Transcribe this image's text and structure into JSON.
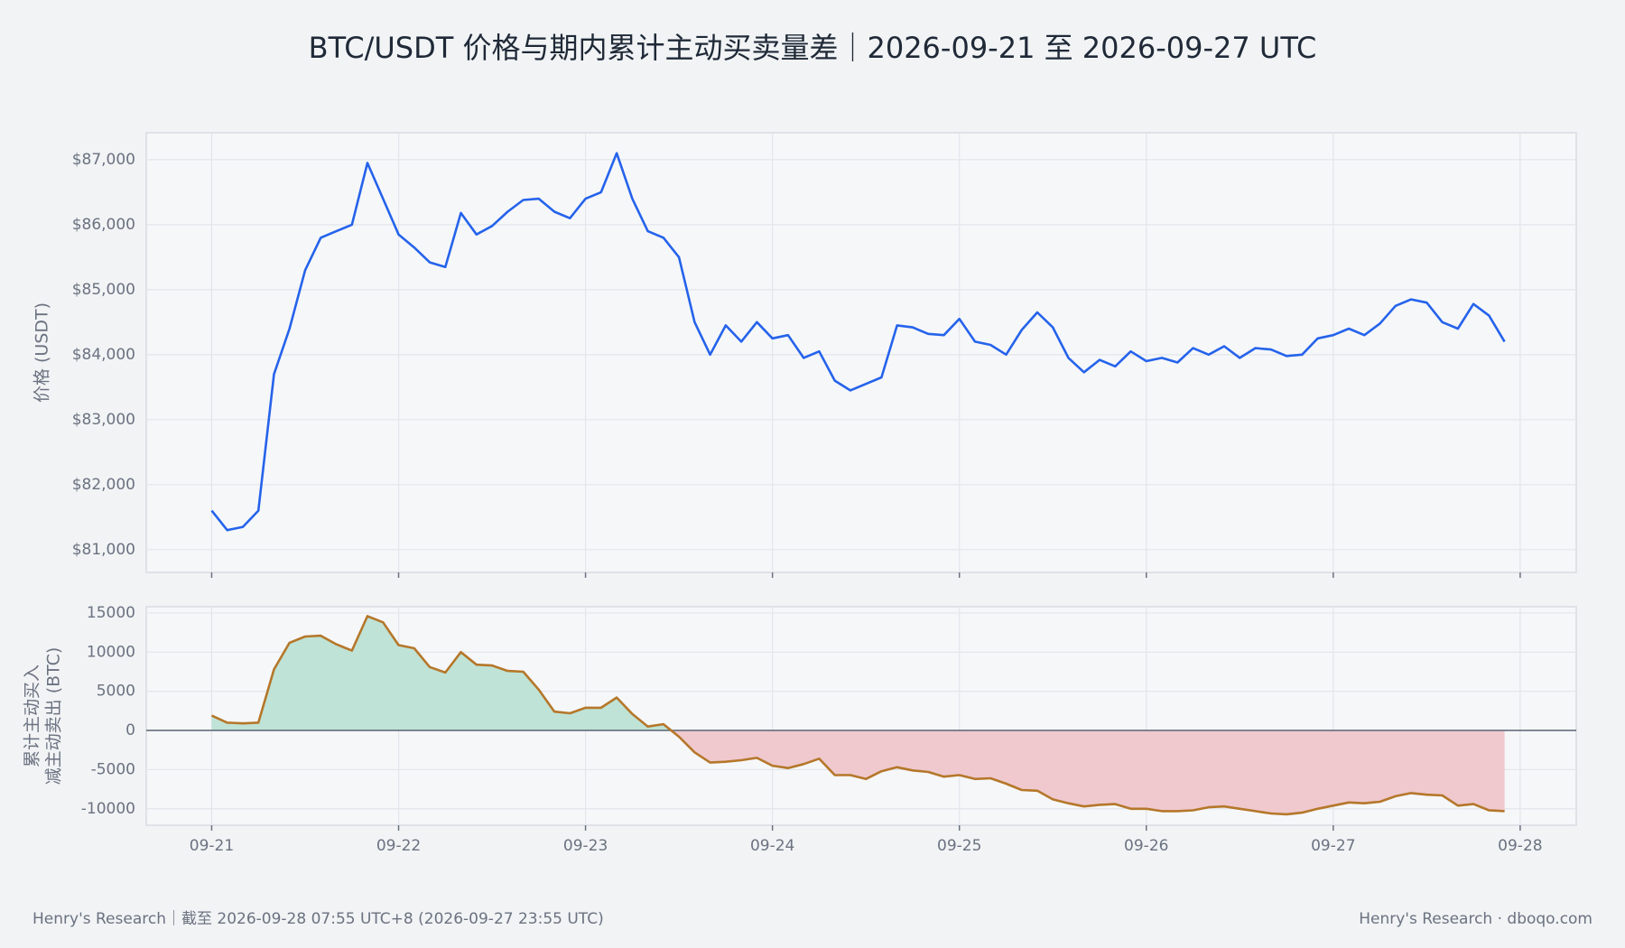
{
  "title": "BTC/USDT 价格与期内累计主动买卖量差｜2026-09-21 至 2026-09-27 UTC",
  "footer": {
    "left": "Henry's Research｜截至 2026-09-28 07:55 UTC+8 (2026-09-27 23:55 UTC)",
    "right": "Henry's Research · dboqo.com"
  },
  "chart_data": [
    {
      "type": "line",
      "ylabel": "价格 (USDT)",
      "x": [
        0,
        2,
        4,
        6,
        8,
        10,
        12,
        14,
        16,
        18,
        20,
        22,
        24,
        26,
        28,
        30,
        32,
        34,
        36,
        38,
        40,
        42,
        44,
        46,
        48,
        50,
        52,
        54,
        56,
        58,
        60,
        62,
        64,
        66,
        68,
        70,
        72,
        74,
        76,
        78,
        80,
        82,
        84,
        86,
        88,
        90,
        92,
        94,
        96,
        98,
        100,
        102,
        104,
        106,
        108,
        110,
        112,
        114,
        116,
        118,
        120,
        122,
        124,
        126,
        128,
        130,
        132,
        134,
        136,
        138,
        140,
        142,
        144,
        146,
        148,
        150,
        152,
        154,
        156,
        158,
        160,
        162,
        164,
        166
      ],
      "series": [
        {
          "name": "价格",
          "color": "#2563eb",
          "values": [
            81600,
            81300,
            81350,
            81600,
            83700,
            84400,
            85300,
            85800,
            85900,
            86000,
            86950,
            86400,
            85850,
            85650,
            85420,
            85350,
            86180,
            85850,
            85980,
            86200,
            86380,
            86400,
            86200,
            86100,
            86400,
            86500,
            87100,
            86400,
            85900,
            85800,
            85500,
            84500,
            84000,
            84450,
            84200,
            84500,
            84250,
            84300,
            83950,
            84050,
            83600,
            83450,
            83550,
            83650,
            84450,
            84420,
            84320,
            84300,
            84550,
            84200,
            84150,
            84000,
            84380,
            84650,
            84420,
            83950,
            83730,
            83920,
            83820,
            84050,
            83900,
            83950,
            83880,
            84100,
            84000,
            84130,
            83950,
            84100,
            84080,
            83980,
            84000,
            84250,
            84300,
            84400,
            84300,
            84480,
            84750,
            84850,
            84800,
            84500,
            84400,
            84780,
            84600,
            84200
          ]
        }
      ],
      "xlim": [
        -8.4,
        175.2
      ],
      "ylim": [
        80650,
        87415
      ],
      "yticks": [
        {
          "value": 81000,
          "label": "$81,000"
        },
        {
          "value": 82000,
          "label": "$82,000"
        },
        {
          "value": 83000,
          "label": "$83,000"
        },
        {
          "value": 84000,
          "label": "$84,000"
        },
        {
          "value": 85000,
          "label": "$85,000"
        },
        {
          "value": 86000,
          "label": "$86,000"
        },
        {
          "value": 87000,
          "label": "$87,000"
        }
      ],
      "grid": true
    },
    {
      "type": "area",
      "ylabel": [
        "累计主动买入",
        "减主动卖出 (BTC)"
      ],
      "x": [
        0,
        2,
        4,
        6,
        8,
        10,
        12,
        14,
        16,
        18,
        20,
        22,
        24,
        26,
        28,
        30,
        32,
        34,
        36,
        38,
        40,
        42,
        44,
        46,
        48,
        50,
        52,
        54,
        56,
        58,
        60,
        62,
        64,
        66,
        68,
        70,
        72,
        74,
        76,
        78,
        80,
        82,
        84,
        86,
        88,
        90,
        92,
        94,
        96,
        98,
        100,
        102,
        104,
        106,
        108,
        110,
        112,
        114,
        116,
        118,
        120,
        122,
        124,
        126,
        128,
        130,
        132,
        134,
        136,
        138,
        140,
        142,
        144,
        146,
        148,
        150,
        152,
        154,
        156,
        158,
        160,
        162,
        164,
        166
      ],
      "series": [
        {
          "name": "累计主动买卖量差",
          "color": "#b5772a",
          "values": [
            1900,
            1000,
            900,
            1000,
            7800,
            11200,
            12000,
            12100,
            11000,
            10200,
            14600,
            13800,
            10900,
            10500,
            8100,
            7400,
            10000,
            8400,
            8300,
            7600,
            7500,
            5200,
            2400,
            2200,
            2900,
            2900,
            4200,
            2100,
            500,
            800,
            -800,
            -2800,
            -4100,
            -4000,
            -3800,
            -3500,
            -4500,
            -4800,
            -4300,
            -3600,
            -5700,
            -5700,
            -6200,
            -5200,
            -4700,
            -5100,
            -5300,
            -5900,
            -5700,
            -6200,
            -6100,
            -6800,
            -7600,
            -7700,
            -8800,
            -9300,
            -9700,
            -9500,
            -9400,
            -10000,
            -10000,
            -10300,
            -10300,
            -10200,
            -9800,
            -9700,
            -10000,
            -10300,
            -10600,
            -10700,
            -10500,
            -10000,
            -9600,
            -9200,
            -9300,
            -9100,
            -8400,
            -8000,
            -8200,
            -8300,
            -9600,
            -9400,
            -10200,
            -10300
          ]
        }
      ],
      "positive_color": "#bfe3d6",
      "negative_color": "#efc9ce",
      "zero_line": true,
      "xlim": [
        -8.4,
        175.2
      ],
      "ylim": [
        -12100,
        15800
      ],
      "xticks": [
        {
          "value": 0,
          "label": "09-21"
        },
        {
          "value": 24,
          "label": "09-22"
        },
        {
          "value": 48,
          "label": "09-23"
        },
        {
          "value": 72,
          "label": "09-24"
        },
        {
          "value": 96,
          "label": "09-25"
        },
        {
          "value": 120,
          "label": "09-26"
        },
        {
          "value": 144,
          "label": "09-27"
        },
        {
          "value": 168,
          "label": "09-28"
        }
      ],
      "yticks": [
        -10000,
        -5000,
        0,
        5000,
        10000,
        15000
      ],
      "grid": true
    }
  ]
}
